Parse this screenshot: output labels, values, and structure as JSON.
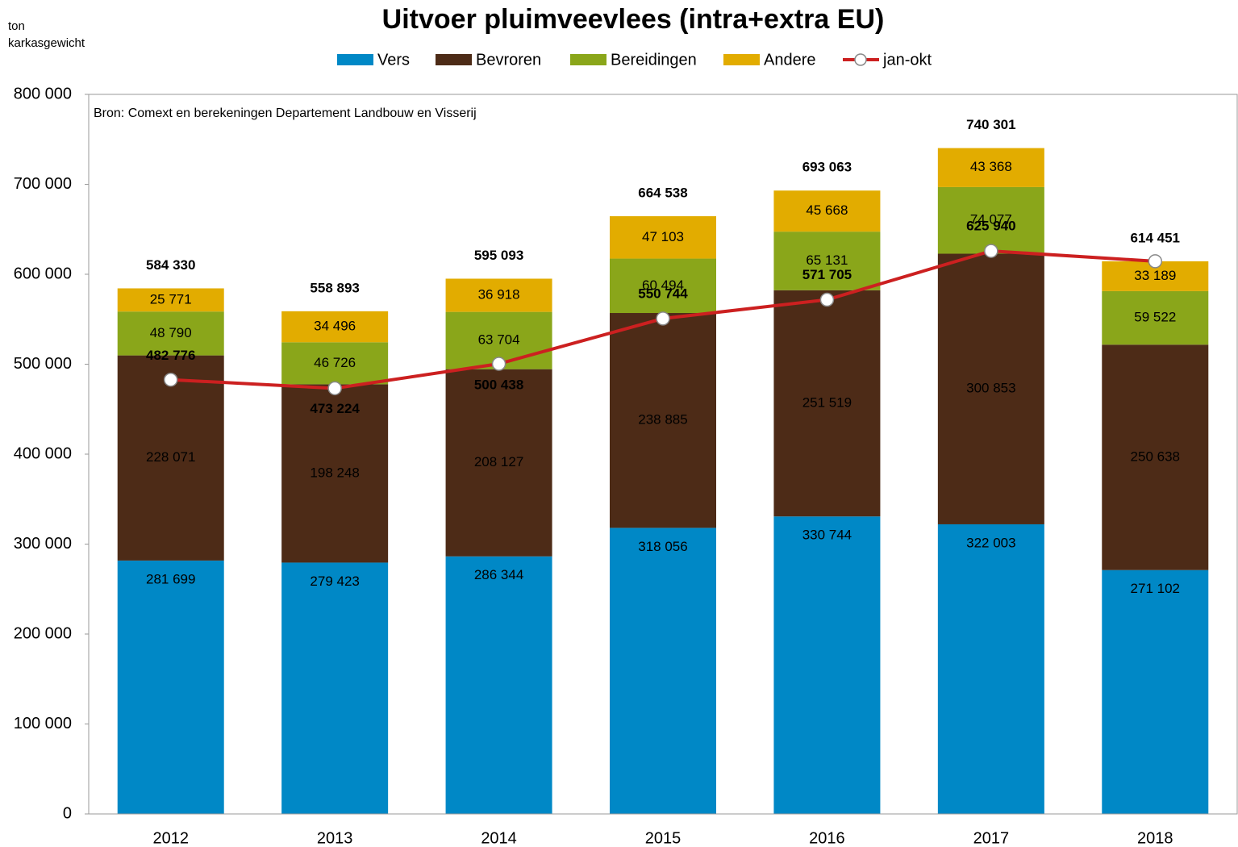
{
  "chart_data": {
    "type": "stacked_bar_line",
    "title": "Uitvoer pluimveevlees (intra+extra EU)",
    "y_label": [
      "ton",
      "karkasgewicht"
    ],
    "annotation": "Bron: Comext  en berekeningen Departement  Landbouw  en Visserij",
    "categories": [
      "2012",
      "2013",
      "2014",
      "2015",
      "2016",
      "2017",
      "2018"
    ],
    "series": [
      {
        "name": "Vers",
        "color": "#0088c6",
        "label_color": "#ffffff",
        "values": [
          281699,
          279423,
          286344,
          318056,
          330744,
          322003,
          271102
        ],
        "value_labels": [
          "281 699",
          "279 423",
          "286 344",
          "318 056",
          "330 744",
          "322 003",
          "271 102"
        ]
      },
      {
        "name": "Bevroren",
        "color": "#4d2b17",
        "label_color": "#ffffff",
        "values": [
          228071,
          198248,
          208127,
          238885,
          251519,
          300853,
          250638
        ],
        "value_labels": [
          "228 071",
          "198 248",
          "208 127",
          "238 885",
          "251 519",
          "300 853",
          "250 638"
        ]
      },
      {
        "name": "Bereidingen",
        "color": "#8aa61a",
        "label_color": "#222222",
        "values": [
          48790,
          46726,
          63704,
          60494,
          65131,
          74077,
          59522
        ],
        "value_labels": [
          "48 790",
          "46 726",
          "63 704",
          "60 494",
          "65 131",
          "74 077",
          "59 522"
        ]
      },
      {
        "name": "Andere",
        "color": "#e2ac00",
        "label_color": "#222222",
        "values": [
          25771,
          34496,
          36918,
          47103,
          45668,
          43368,
          33189
        ],
        "value_labels": [
          "25 771",
          "34 496",
          "36 918",
          "47 103",
          "45 668",
          "43 368",
          "33 189"
        ]
      }
    ],
    "line": {
      "name": "jan-okt",
      "color": "#cc2020",
      "values": [
        482776,
        473224,
        500438,
        550744,
        571705,
        625940,
        614451
      ],
      "value_labels": [
        "482 776",
        "473 224",
        "500 438",
        "550 744",
        "571 705",
        "625 940",
        null
      ]
    },
    "totals": {
      "values": [
        584330,
        558893,
        595093,
        664538,
        693063,
        740301,
        614451
      ],
      "value_labels": [
        "584 330",
        "558 893",
        "595 093",
        "664 538",
        "693 063",
        "740 301",
        "614 451"
      ]
    },
    "ylim": [
      0,
      800000
    ],
    "yticks": [
      0,
      {
        "value": 100000,
        "label": "100 000"
      },
      {
        "value": 200000,
        "label": "200 000"
      },
      {
        "value": 300000,
        "label": "300 000"
      },
      {
        "value": 400000,
        "label": "400 000"
      },
      {
        "value": 500000,
        "label": "500 000"
      },
      {
        "value": 600000,
        "label": "600 000"
      },
      {
        "value": 700000,
        "label": "700 000"
      },
      {
        "value": 800000,
        "label": "800 000"
      }
    ],
    "grid": false
  }
}
